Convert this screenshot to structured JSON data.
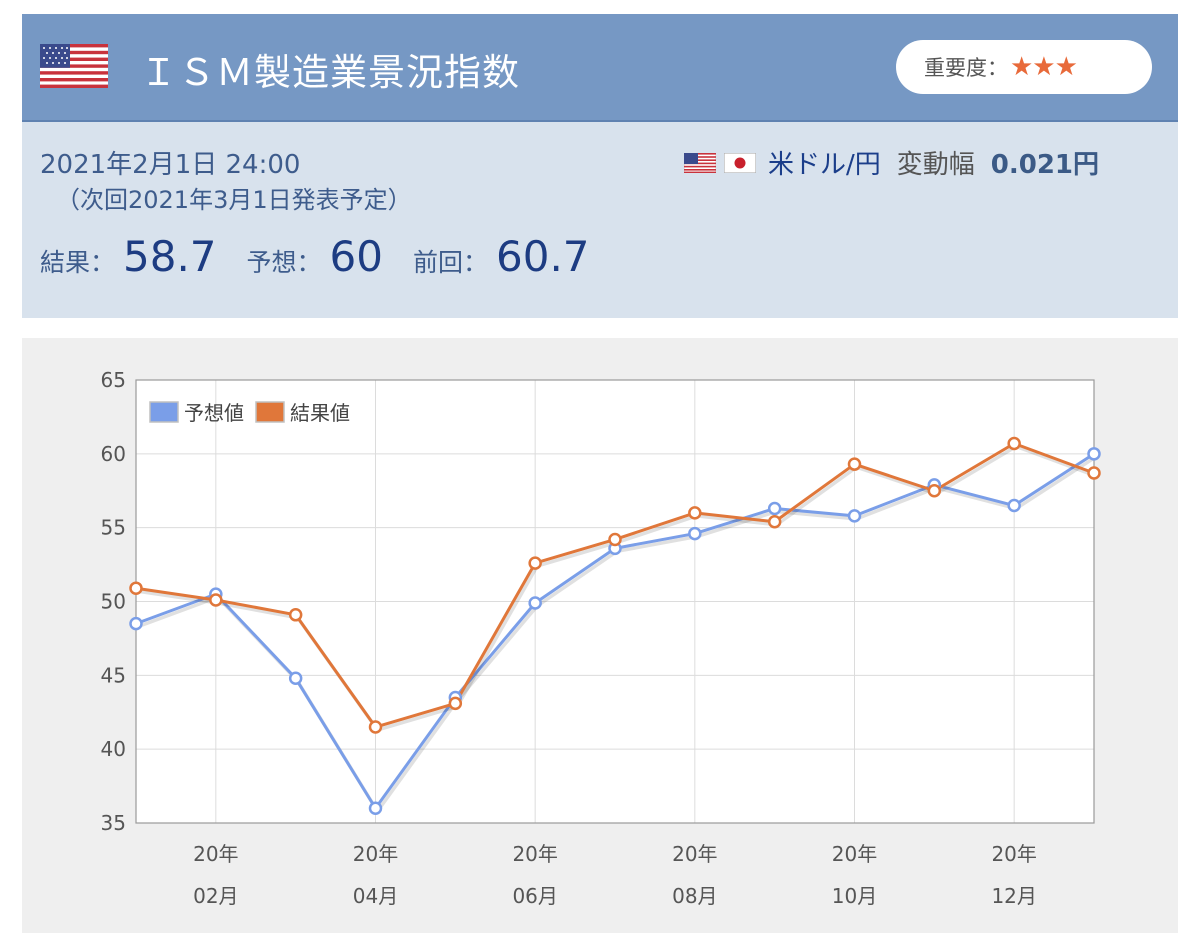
{
  "header": {
    "title": "ＩＳＭ製造業景況指数",
    "importance_label": "重要度：",
    "importance_stars": "★★★"
  },
  "info": {
    "datetime": "2021年2月1日 24:00",
    "next_release": "（次回2021年3月1日発表予定）",
    "pair": "米ドル/円",
    "change_label": "変動幅",
    "change_value": "0.021円",
    "result_label": "結果：",
    "result_value": "58.7",
    "forecast_label": "予想：",
    "forecast_value": "60",
    "previous_label": "前回：",
    "previous_value": "60.7"
  },
  "colors": {
    "header_bg": "#7698c4",
    "info_bg": "#d8e2ed",
    "forecast_series": "#7a9ee8",
    "result_series": "#e0773a"
  },
  "chart_data": {
    "type": "line",
    "ylim": [
      35,
      65
    ],
    "yticks": [
      "35",
      "40",
      "45",
      "50",
      "55",
      "60",
      "65"
    ],
    "x_tick_labels": [
      {
        "line1": "20年",
        "line2": "02月"
      },
      {
        "line1": "20年",
        "line2": "04月"
      },
      {
        "line1": "20年",
        "line2": "06月"
      },
      {
        "line1": "20年",
        "line2": "08月"
      },
      {
        "line1": "20年",
        "line2": "10月"
      },
      {
        "line1": "20年",
        "line2": "12月"
      }
    ],
    "legend_position": "top-left",
    "grid": true,
    "series": [
      {
        "name": "予想値",
        "color": "#7a9ee8",
        "values": [
          48.5,
          50.5,
          44.8,
          36.0,
          43.5,
          49.9,
          53.6,
          54.6,
          56.3,
          55.8,
          57.9,
          56.5,
          60.0
        ]
      },
      {
        "name": "結果値",
        "color": "#e0773a",
        "values": [
          50.9,
          50.1,
          49.1,
          41.5,
          43.1,
          52.6,
          54.2,
          56.0,
          55.4,
          59.3,
          57.5,
          60.7,
          58.7
        ]
      }
    ]
  }
}
